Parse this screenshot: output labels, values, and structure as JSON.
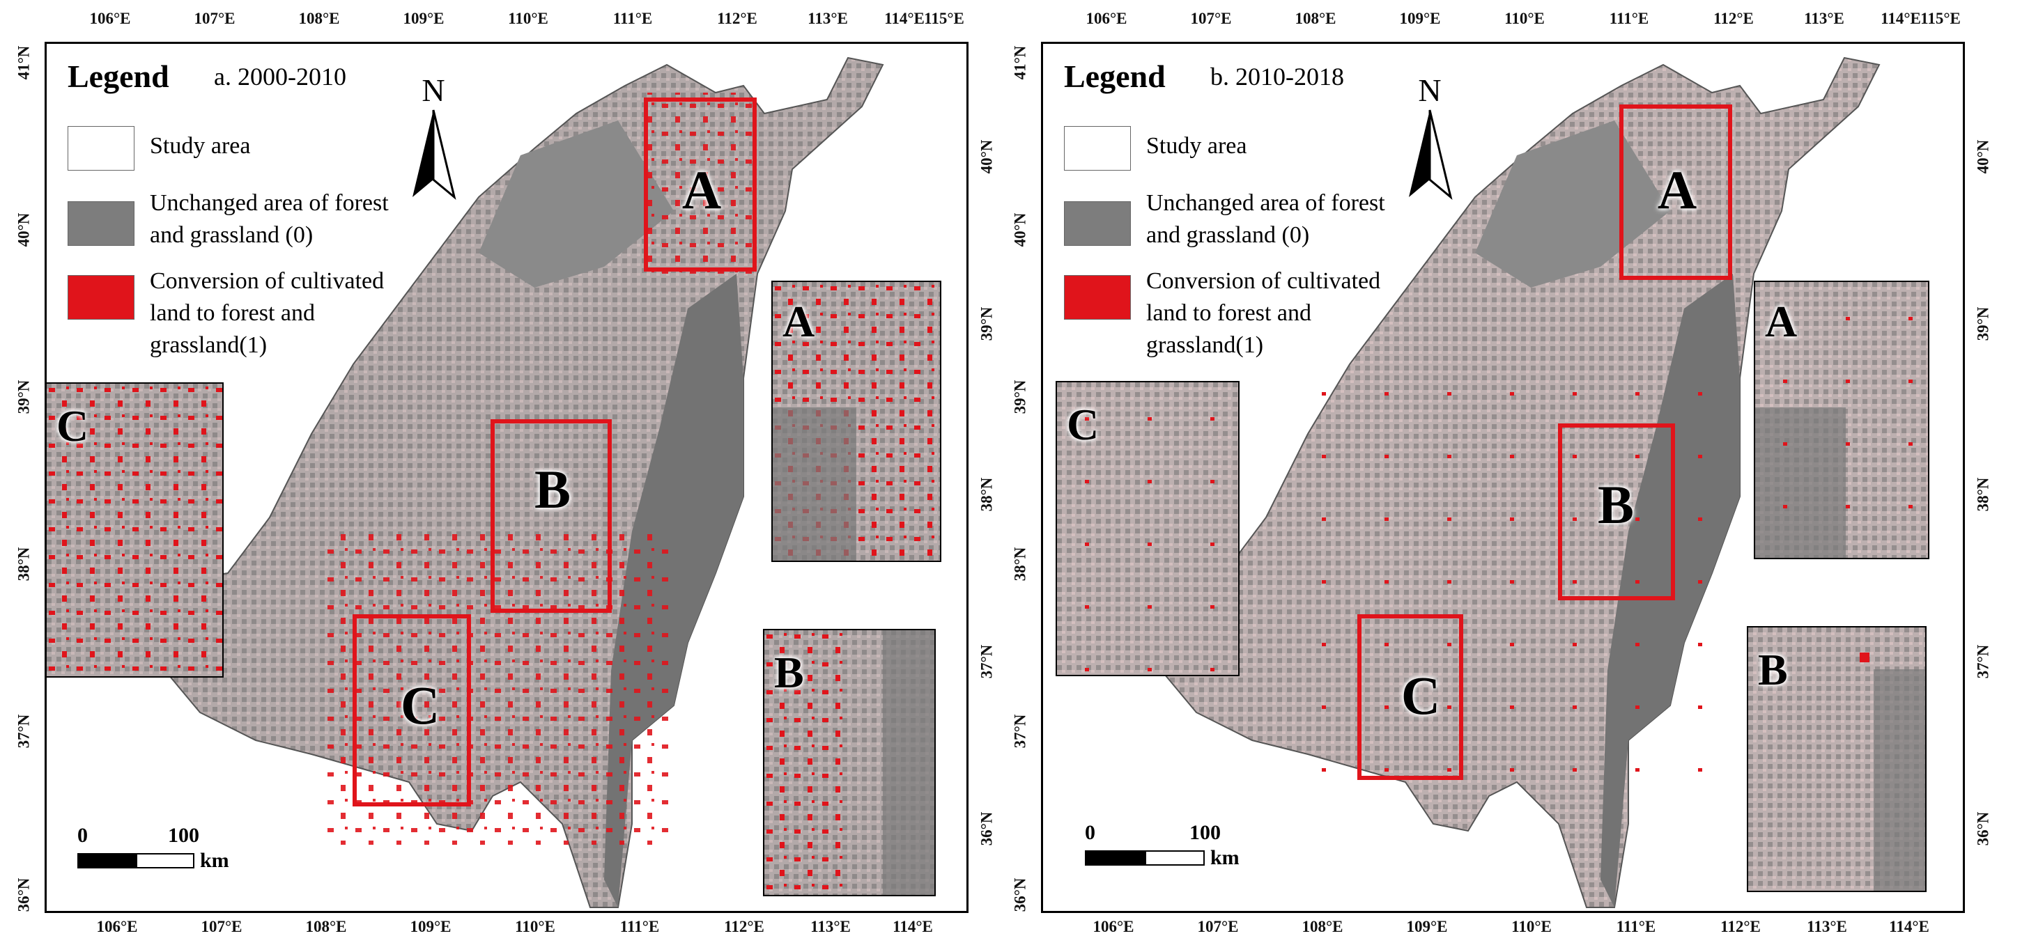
{
  "legend_title": "Legend",
  "legend_items": {
    "study_area": "Study area",
    "unchanged": "Unchanged area of forest and grassland (0)",
    "converted": "Conversion of cultivated land to forest and grassland(1)"
  },
  "north_label": "N",
  "scale": {
    "zero": "0",
    "hundred": "100",
    "unit": "km"
  },
  "longitudes_top": [
    "106°E",
    "107°E",
    "108°E",
    "109°E",
    "110°E",
    "111°E",
    "112°E",
    "113°E",
    "114°E",
    "115°E"
  ],
  "longitudes_bottom": [
    "106°E",
    "107°E",
    "108°E",
    "109°E",
    "110°E",
    "111°E",
    "112°E",
    "113°E",
    "114°E"
  ],
  "latitudes_left": [
    "41°N",
    "40°N",
    "39°N",
    "38°N",
    "37°N",
    "36°N"
  ],
  "latitudes_right": [
    "40°N",
    "39°N",
    "38°N",
    "37°N",
    "36°N"
  ],
  "box_labels": {
    "a": "A",
    "b": "B",
    "c": "C"
  },
  "panels": [
    {
      "title": "a. 2000-2010"
    },
    {
      "title": "b. 2010-2018"
    }
  ],
  "colors": {
    "unchanged": "#7d7d7d",
    "converted": "#e0141b",
    "study_area": "#ffffff",
    "mosaic": "#a89f9f"
  }
}
